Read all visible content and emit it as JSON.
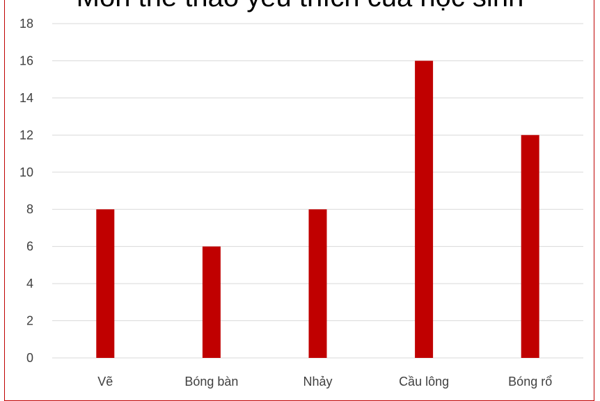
{
  "chart_data": {
    "type": "bar",
    "title": "Môn thể thao yêu thích của học sinh",
    "categories": [
      "Vẽ",
      "Bóng bàn",
      "Nhảy",
      "Cầu lông",
      "Bóng rổ"
    ],
    "values": [
      8,
      6,
      8,
      16,
      12
    ],
    "ylim": [
      0,
      18
    ],
    "yticks": [
      0,
      2,
      4,
      6,
      8,
      10,
      12,
      14,
      16,
      18
    ],
    "grid": true,
    "legend": "none",
    "bar_color": "#c00000",
    "frame_color": "#c00000",
    "grid_color": "#d9d9d9",
    "text_color": "#404040"
  }
}
